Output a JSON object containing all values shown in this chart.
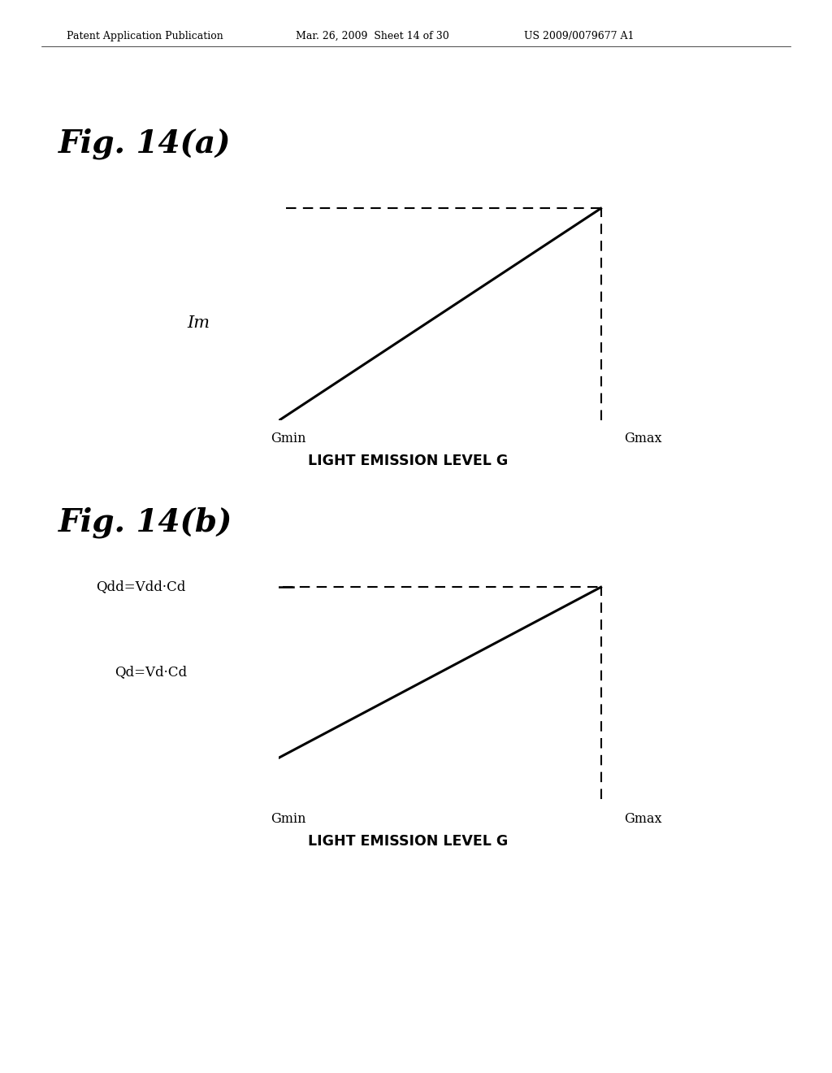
{
  "bg_color": "#ffffff",
  "header_left": "Patent Application Publication",
  "header_mid": "Mar. 26, 2009  Sheet 14 of 30",
  "header_right": "US 2009/0079677 A1",
  "fig_a_title": "Fig. 14(a)",
  "fig_b_title": "Fig. 14(b)",
  "fig_a_ylabel": "Im",
  "fig_b_ylabel_upper": "Qdd=Vdd·Cd",
  "fig_b_ylabel_lower": "Qd=Vd·Cd",
  "xlabel_a": "LIGHT EMISSION LEVEL G",
  "xlabel_b": "LIGHT EMISSION LEVEL G",
  "xmin_label": "Gmin",
  "xmax_label": "Gmax",
  "line_color": "#000000",
  "dashed_color": "#000000"
}
